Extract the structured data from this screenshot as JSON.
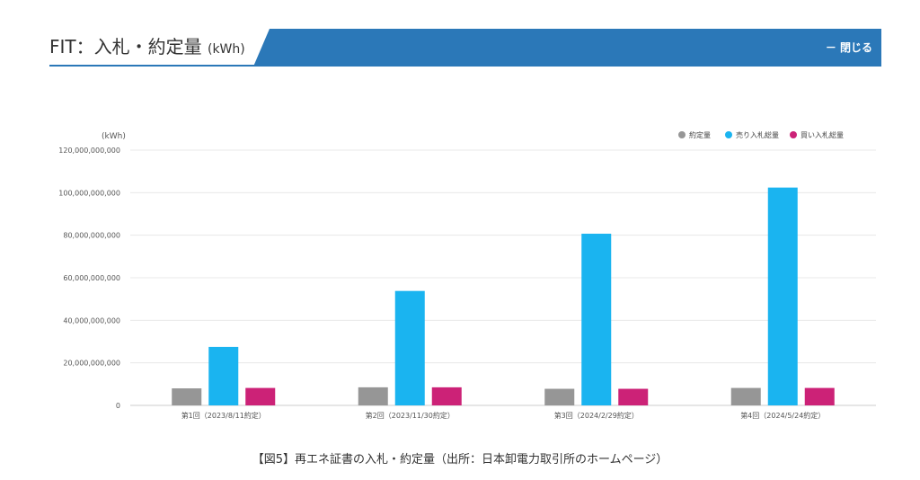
{
  "header": {
    "title": "FIT：入札・約定量",
    "unit": "(kWh)",
    "close_label": "－ 閉じる"
  },
  "colors": {
    "header_blue": "#2b78b8",
    "yakujo": "#969696",
    "uri": "#1ab4f0",
    "kai": "#cc2277",
    "grid": "#e8e8e8",
    "text": "#555555"
  },
  "chart_data": {
    "type": "bar",
    "unit_label": "(kWh)",
    "categories": [
      "第1回（2023/8/11約定）",
      "第2回（2023/11/30約定）",
      "第3回（2024/2/29約定）",
      "第4回（2024/5/24約定）"
    ],
    "series": [
      {
        "name": "約定量",
        "color": "#969696",
        "values": [
          8000000000,
          8500000000,
          7800000000,
          8200000000
        ]
      },
      {
        "name": "売り入札総量",
        "color": "#1ab4f0",
        "values": [
          27500000000,
          53800000000,
          80700000000,
          102400000000
        ]
      },
      {
        "name": "買い入札総量",
        "color": "#cc2277",
        "values": [
          8200000000,
          8500000000,
          7800000000,
          8200000000
        ]
      }
    ],
    "ylim": [
      0,
      120000000000
    ],
    "yticks": [
      0,
      20000000000,
      40000000000,
      60000000000,
      80000000000,
      100000000000,
      120000000000
    ],
    "ytick_labels": [
      "0",
      "20,000,000,000",
      "40,000,000,000",
      "60,000,000,000",
      "80,000,000,000",
      "100,000,000,000",
      "120,000,000,000"
    ],
    "legend_position": "top-right",
    "grid": true
  },
  "caption": "【図5】再エネ証書の入札・約定量（出所：日本卸電力取引所のホームページ）"
}
